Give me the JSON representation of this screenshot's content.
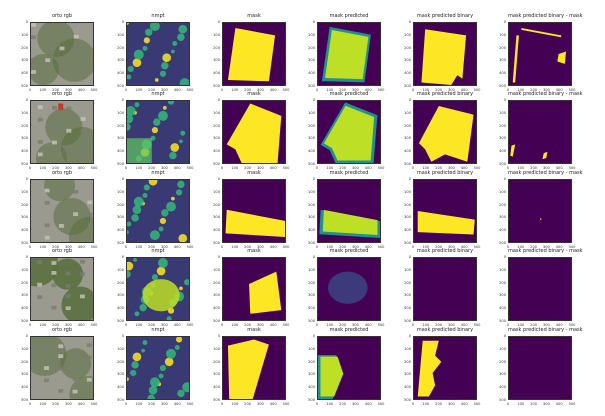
{
  "figure": {
    "column_titles": [
      "orto rgb",
      "nmpt",
      "mask",
      "mask predicted",
      "mask predicted binary",
      "mask predicted binary - mask"
    ],
    "y_ticks": [
      "0",
      "100",
      "200",
      "300",
      "400",
      "500"
    ],
    "x_ticks": [
      "0",
      "100",
      "200",
      "300",
      "400",
      "500"
    ],
    "rows": 5,
    "colors": {
      "viridis_low": "#440154",
      "viridis_mid": "#21918c",
      "viridis_high": "#fde725",
      "photo_gray": "#9a9a8e",
      "photo_green": "#5a7040"
    }
  },
  "chart_data": {
    "type": "heatmap",
    "panels_per_row": 6,
    "rows": [
      {
        "row": 1,
        "mask_shape": "large tilted polygon",
        "predicted_binary_diff": "thin edge slivers"
      },
      {
        "row": 2,
        "mask_shape": "large diagonal polygon",
        "predicted_binary_diff": "small slivers"
      },
      {
        "row": 3,
        "mask_shape": "lower band",
        "predicted_binary_diff": "nearly empty"
      },
      {
        "row": 4,
        "mask_shape": "right quadrilateral",
        "predicted_binary_diff": "empty"
      },
      {
        "row": 5,
        "mask_shape": "left tilted band",
        "predicted_binary_diff": "empty"
      }
    ],
    "colormap": "viridis",
    "xlim": [
      0,
      500
    ],
    "ylim": [
      500,
      0
    ]
  }
}
